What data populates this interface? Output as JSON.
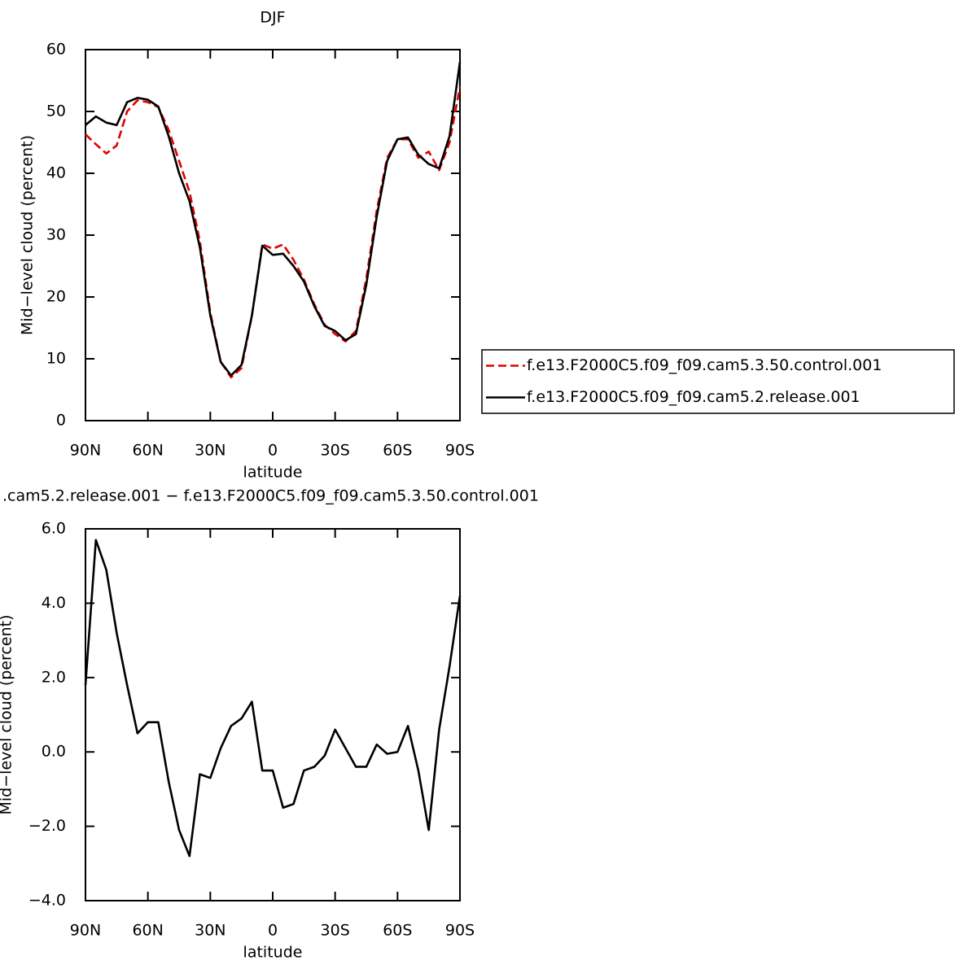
{
  "chart_data": [
    {
      "type": "line",
      "title": "DJF",
      "xlabel": "latitude",
      "ylabel": "Mid−level cloud (percent)",
      "x": [
        90,
        85,
        80,
        75,
        70,
        65,
        60,
        55,
        50,
        45,
        40,
        35,
        30,
        25,
        20,
        15,
        10,
        5,
        0,
        -5,
        -10,
        -15,
        -20,
        -25,
        -30,
        -35,
        -40,
        -45,
        -50,
        -55,
        -60,
        -65,
        -70,
        -75,
        -80,
        -85,
        -90
      ],
      "series": [
        {
          "name": "f.e13.F2000C5.f09_f09.cam5.3.50.control.001",
          "color": "#e00000",
          "linestyle": "dashed",
          "values": [
            46.3,
            44.7,
            43.2,
            44.5,
            50,
            51.8,
            51.5,
            50.7,
            47,
            42,
            37,
            29,
            17.5,
            9.5,
            7,
            8.5,
            17,
            28.5,
            27.8,
            28.5,
            26,
            22.8,
            18.8,
            15.5,
            14,
            12.8,
            14.5,
            23,
            34,
            42.5,
            45.5,
            45.5,
            42.5,
            43.5,
            40.5,
            45,
            54
          ]
        },
        {
          "name": "f.e13.F2000C5.f09_f09.cam5.2.release.001",
          "color": "#000000",
          "linestyle": "solid",
          "values": [
            47.8,
            49.2,
            48.2,
            47.8,
            51.5,
            52.2,
            51.9,
            50.8,
            46,
            40,
            35.5,
            28,
            17,
            9.5,
            7.3,
            9,
            17,
            28.3,
            26.8,
            27,
            25,
            22.5,
            18.5,
            15.3,
            14.5,
            13,
            14,
            22,
            33,
            42,
            45.5,
            45.8,
            43,
            41.5,
            40.8,
            46,
            58
          ]
        }
      ],
      "xlim": [
        90,
        -90
      ],
      "xticks": [
        {
          "value": 90,
          "label": "90N"
        },
        {
          "value": 60,
          "label": "60N"
        },
        {
          "value": 30,
          "label": "30N"
        },
        0,
        {
          "value": -30,
          "label": "30S"
        },
        {
          "value": -60,
          "label": "60S"
        },
        {
          "value": -90,
          "label": "90S"
        }
      ],
      "ylim": [
        0,
        60
      ],
      "yticks": [
        0,
        10,
        20,
        30,
        40,
        50,
        60
      ],
      "legend": "right"
    },
    {
      "type": "line",
      "title": ".cam5.2.release.001 − f.e13.F2000C5.f09_f09.cam5.3.50.control.001",
      "xlabel": "latitude",
      "ylabel": "Mid−level cloud (percent)",
      "x": [
        90,
        85,
        80,
        75,
        70,
        65,
        60,
        55,
        50,
        45,
        40,
        35,
        30,
        25,
        20,
        15,
        10,
        5,
        0,
        -5,
        -10,
        -15,
        -20,
        -25,
        -30,
        -35,
        -40,
        -45,
        -50,
        -55,
        -60,
        -65,
        -70,
        -75,
        -80,
        -85,
        -90
      ],
      "series": [
        {
          "color": "#000000",
          "linestyle": "solid",
          "values": [
            1.8,
            5.7,
            4.9,
            3.2,
            1.8,
            0.5,
            0.8,
            0.8,
            -0.8,
            -2.1,
            -2.8,
            -0.6,
            -0.7,
            0.1,
            0.7,
            0.9,
            1.35,
            -0.5,
            -0.5,
            -1.5,
            -1.4,
            -0.5,
            -0.4,
            -0.1,
            0.6,
            0.1,
            -0.4,
            -0.4,
            0.2,
            -0.05,
            0,
            0.7,
            -0.5,
            -2.1,
            0.6,
            2.3,
            4.2
          ]
        }
      ],
      "xlim": [
        90,
        -90
      ],
      "xticks": [
        {
          "value": 90,
          "label": "90N"
        },
        {
          "value": 60,
          "label": "60N"
        },
        {
          "value": 30,
          "label": "30N"
        },
        0,
        {
          "value": -30,
          "label": "30S"
        },
        {
          "value": -60,
          "label": "60S"
        },
        {
          "value": -90,
          "label": "90S"
        }
      ],
      "ylim": [
        -4,
        6
      ],
      "yticks": [
        {
          "value": -4,
          "label": "−4.0"
        },
        {
          "value": -2,
          "label": "−2.0"
        },
        {
          "value": 0,
          "label": "0.0"
        },
        {
          "value": 2,
          "label": "2.0"
        },
        {
          "value": 4,
          "label": "4.0"
        },
        {
          "value": 6,
          "label": "6.0"
        }
      ]
    }
  ]
}
